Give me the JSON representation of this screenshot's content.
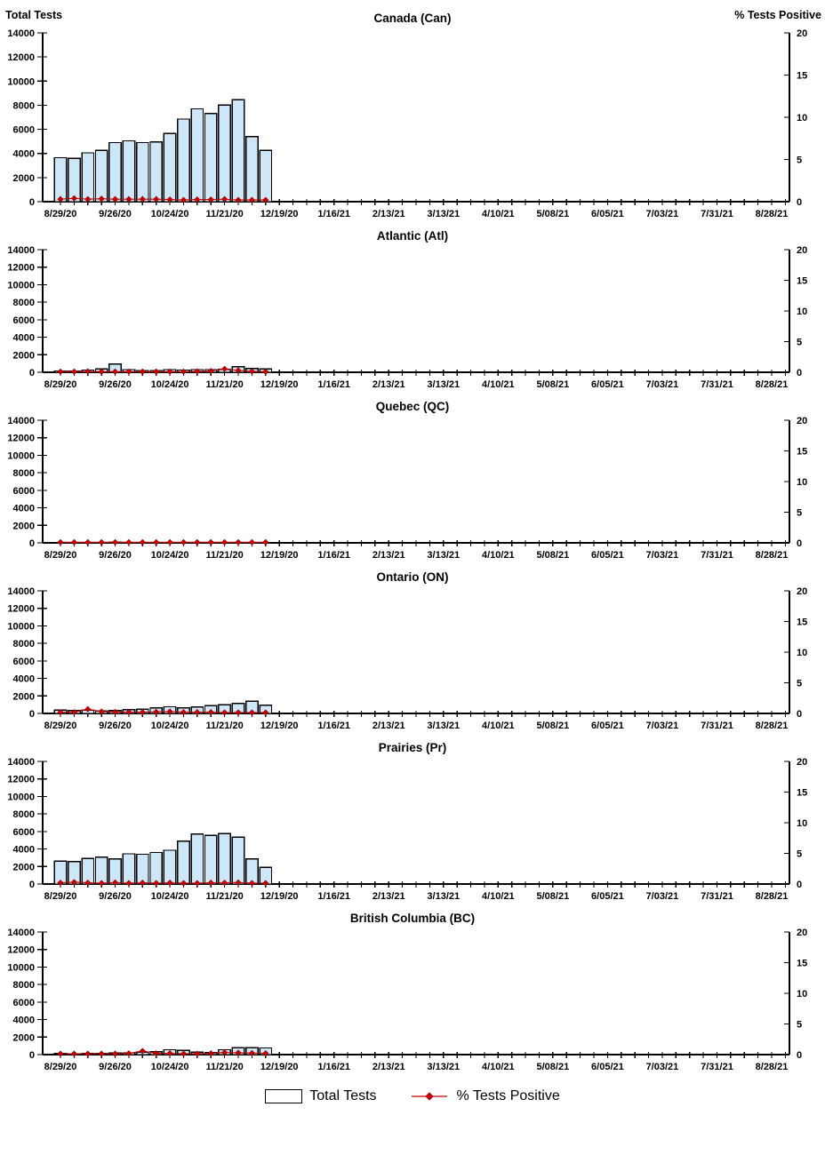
{
  "page": {
    "background": "#ffffff"
  },
  "axis": {
    "left_title": "Total Tests",
    "right_title": "% Tests Positive",
    "left_max": 14000,
    "left_ticks": [
      0,
      2000,
      4000,
      6000,
      8000,
      10000,
      12000,
      14000
    ],
    "right_max": 20,
    "right_ticks": [
      0,
      5,
      10,
      15,
      20
    ],
    "weeks": 53,
    "label_every": 4,
    "x_labels": [
      "8/29/20",
      "9/26/20",
      "10/24/20",
      "11/21/20",
      "12/19/20",
      "1/16/21",
      "2/13/21",
      "3/13/21",
      "4/10/21",
      "5/08/21",
      "6/05/21",
      "7/03/21",
      "7/31/21",
      "8/28/21"
    ]
  },
  "legend": {
    "bars": "Total Tests",
    "line": "% Tests Positive"
  },
  "colors": {
    "bar_fill": "#CDE7F8",
    "bar_border": "#000000",
    "line": "#C00000",
    "diamond": "#C00000",
    "axis": "#000000"
  },
  "chart_data": [
    {
      "type": "bar",
      "title": "Canada (Can)",
      "xlabel": "",
      "ylabel_left": "Total Tests",
      "ylabel_right": "% Tests Positive",
      "ylim_left": [
        0,
        14000
      ],
      "ylim_right": [
        0,
        20
      ],
      "categories": [
        "8/29/20",
        "9/5/20",
        "9/12/20",
        "9/19/20",
        "9/26/20",
        "10/3/20",
        "10/10/20",
        "10/17/20",
        "10/24/20",
        "10/31/20",
        "11/7/20",
        "11/14/20",
        "11/21/20",
        "11/28/20",
        "12/5/20",
        "12/12/20"
      ],
      "series": [
        {
          "name": "Total Tests",
          "type": "bar",
          "axis": "left",
          "values": [
            3650,
            3600,
            4050,
            4250,
            4900,
            5050,
            4900,
            4950,
            5650,
            6850,
            7700,
            7300,
            8000,
            8450,
            5400,
            4250
          ]
        },
        {
          "name": "% Tests Positive",
          "type": "line",
          "axis": "right",
          "values": [
            0.3,
            0.4,
            0.3,
            0.35,
            0.3,
            0.3,
            0.3,
            0.3,
            0.25,
            0.2,
            0.25,
            0.25,
            0.3,
            0.2,
            0.2,
            0.2
          ]
        }
      ]
    },
    {
      "type": "bar",
      "title": "Atlantic (Atl)",
      "ylim_left": [
        0,
        14000
      ],
      "ylim_right": [
        0,
        20
      ],
      "categories": [
        "8/29/20",
        "9/5/20",
        "9/12/20",
        "9/19/20",
        "9/26/20",
        "10/3/20",
        "10/10/20",
        "10/17/20",
        "10/24/20",
        "10/31/20",
        "11/7/20",
        "11/14/20",
        "11/21/20",
        "11/28/20",
        "12/5/20",
        "12/12/20"
      ],
      "series": [
        {
          "name": "Total Tests",
          "type": "bar",
          "axis": "left",
          "values": [
            150,
            150,
            250,
            400,
            950,
            300,
            200,
            200,
            300,
            250,
            300,
            300,
            350,
            650,
            450,
            400
          ]
        },
        {
          "name": "% Tests Positive",
          "type": "line",
          "axis": "right",
          "values": [
            0.1,
            0.1,
            0.15,
            0.1,
            0.1,
            0.1,
            0.1,
            0.1,
            0.1,
            0.1,
            0.15,
            0.2,
            0.55,
            0.3,
            0.15,
            0.1
          ]
        }
      ]
    },
    {
      "type": "bar",
      "title": "Quebec (QC)",
      "ylim_left": [
        0,
        14000
      ],
      "ylim_right": [
        0,
        20
      ],
      "categories": [
        "8/29/20",
        "9/5/20",
        "9/12/20",
        "9/19/20",
        "9/26/20",
        "10/3/20",
        "10/10/20",
        "10/17/20",
        "10/24/20",
        "10/31/20",
        "11/7/20",
        "11/14/20",
        "11/21/20",
        "11/28/20",
        "12/5/20",
        "12/12/20"
      ],
      "series": [
        {
          "name": "Total Tests",
          "type": "bar",
          "axis": "left",
          "values": [
            50,
            50,
            50,
            50,
            60,
            50,
            50,
            50,
            50,
            50,
            50,
            50,
            50,
            50,
            50,
            50
          ]
        },
        {
          "name": "% Tests Positive",
          "type": "line",
          "axis": "right",
          "values": [
            0.1,
            0.1,
            0.1,
            0.1,
            0.1,
            0.1,
            0.1,
            0.1,
            0.1,
            0.1,
            0.1,
            0.1,
            0.1,
            0.1,
            0.1,
            0.1
          ]
        }
      ]
    },
    {
      "type": "bar",
      "title": "Ontario (ON)",
      "ylim_left": [
        0,
        14000
      ],
      "ylim_right": [
        0,
        20
      ],
      "categories": [
        "8/29/20",
        "9/5/20",
        "9/12/20",
        "9/19/20",
        "9/26/20",
        "10/3/20",
        "10/10/20",
        "10/17/20",
        "10/24/20",
        "10/31/20",
        "11/7/20",
        "11/14/20",
        "11/21/20",
        "11/28/20",
        "12/5/20",
        "12/12/20"
      ],
      "series": [
        {
          "name": "Total Tests",
          "type": "bar",
          "axis": "left",
          "values": [
            400,
            320,
            380,
            280,
            330,
            420,
            500,
            630,
            760,
            640,
            720,
            890,
            1000,
            1150,
            1400,
            950
          ]
        },
        {
          "name": "% Tests Positive",
          "type": "line",
          "axis": "right",
          "values": [
            0.2,
            0.2,
            0.7,
            0.3,
            0.25,
            0.2,
            0.2,
            0.25,
            0.3,
            0.2,
            0.2,
            0.2,
            0.15,
            0.15,
            0.15,
            0.15
          ]
        }
      ]
    },
    {
      "type": "bar",
      "title": "Prairies (Pr)",
      "ylim_left": [
        0,
        14000
      ],
      "ylim_right": [
        0,
        20
      ],
      "categories": [
        "8/29/20",
        "9/5/20",
        "9/12/20",
        "9/19/20",
        "9/26/20",
        "10/3/20",
        "10/10/20",
        "10/17/20",
        "10/24/20",
        "10/31/20",
        "11/7/20",
        "11/14/20",
        "11/21/20",
        "11/28/20",
        "12/5/20",
        "12/12/20"
      ],
      "series": [
        {
          "name": "Total Tests",
          "type": "bar",
          "axis": "left",
          "values": [
            2600,
            2550,
            2900,
            3050,
            2850,
            3450,
            3400,
            3600,
            3850,
            4900,
            5700,
            5550,
            5750,
            5350,
            2850,
            1900
          ]
        },
        {
          "name": "% Tests Positive",
          "type": "line",
          "axis": "right",
          "values": [
            0.2,
            0.3,
            0.2,
            0.15,
            0.25,
            0.15,
            0.2,
            0.15,
            0.2,
            0.15,
            0.15,
            0.2,
            0.2,
            0.25,
            0.15,
            0.15
          ]
        }
      ]
    },
    {
      "type": "bar",
      "title": "British Columbia (BC)",
      "ylim_left": [
        0,
        14000
      ],
      "ylim_right": [
        0,
        20
      ],
      "categories": [
        "8/29/20",
        "9/5/20",
        "9/12/20",
        "9/19/20",
        "9/26/20",
        "10/3/20",
        "10/10/20",
        "10/17/20",
        "10/24/20",
        "10/31/20",
        "11/7/20",
        "11/14/20",
        "11/21/20",
        "11/28/20",
        "12/5/20",
        "12/12/20"
      ],
      "series": [
        {
          "name": "Total Tests",
          "type": "bar",
          "axis": "left",
          "values": [
            120,
            100,
            120,
            150,
            160,
            200,
            280,
            320,
            560,
            500,
            260,
            210,
            560,
            800,
            780,
            760
          ]
        },
        {
          "name": "% Tests Positive",
          "type": "line",
          "axis": "right",
          "values": [
            0.15,
            0.15,
            0.15,
            0.15,
            0.15,
            0.2,
            0.6,
            0.2,
            0.2,
            0.15,
            0.15,
            0.2,
            0.35,
            0.3,
            0.25,
            0.2
          ]
        }
      ]
    }
  ]
}
